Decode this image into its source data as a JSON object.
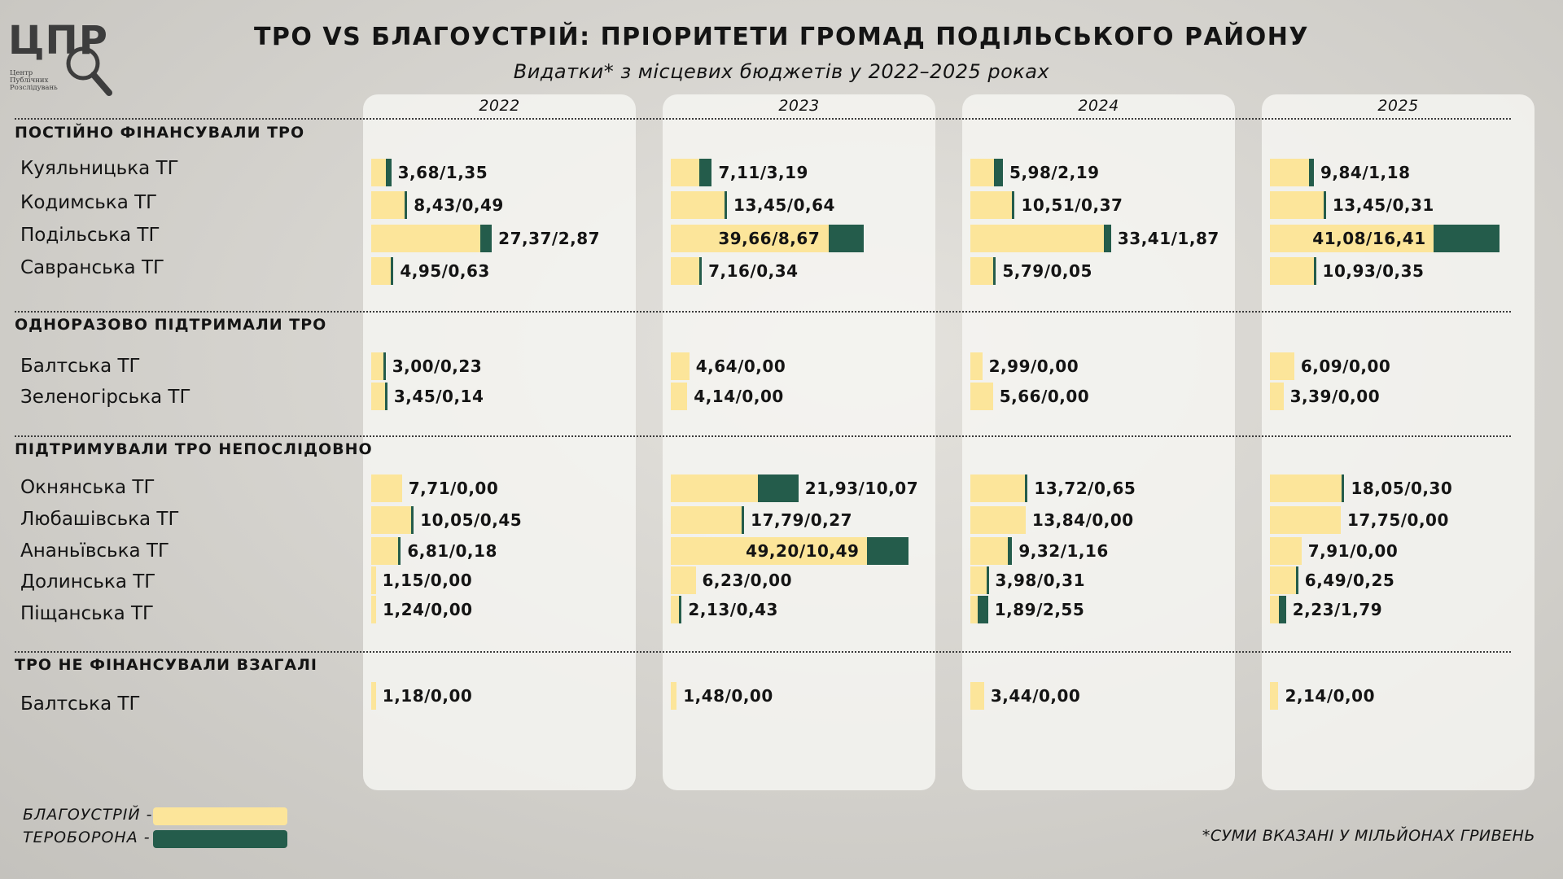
{
  "logo": {
    "text": "ЦПР",
    "sub": [
      "Центр",
      "Публічних",
      "Розслідувань"
    ]
  },
  "title": "ТРО VS БЛАГОУСТРІЙ: ПРІОРИТЕТИ ГРОМАД ПОДІЛЬСЬКОГО РАЙОНУ",
  "subtitle": "Видатки* з місцевих бюджетів у 2022–2025 роках",
  "legend": {
    "blag_label": "БЛАГОУСТРІЙ -",
    "tro_label": "ТЕРОБОРОНА -",
    "blag_color": "#fce59a",
    "tro_color": "#245c4b"
  },
  "footnote": "*СУМИ ВКАЗАНІ У МІЛЬЙОНАХ ГРИВЕНЬ",
  "chart_data": {
    "type": "bar",
    "years": [
      "2022",
      "2023",
      "2024",
      "2025"
    ],
    "series_names": [
      "БЛАГОУСТРІЙ",
      "ТЕРОБОРОНА"
    ],
    "groups": [
      {
        "label": "ПОСТІЙНО ФІНАНСУВАЛИ ТРО",
        "rows": [
          {
            "name": "Куяльницька ТГ",
            "values": [
              [
                3.68,
                1.35
              ],
              [
                7.11,
                3.19
              ],
              [
                5.98,
                2.19
              ],
              [
                9.84,
                1.18
              ]
            ],
            "labels": [
              "3,68/1,35",
              "7,11/3,19",
              "5,98/2,19",
              "9,84/1,18"
            ]
          },
          {
            "name": "Кодимська ТГ",
            "values": [
              [
                8.43,
                0.49
              ],
              [
                13.45,
                0.64
              ],
              [
                10.51,
                0.37
              ],
              [
                13.45,
                0.31
              ]
            ],
            "labels": [
              "8,43/0,49",
              "13,45/0,64",
              "10,51/0,37",
              "13,45/0,31"
            ]
          },
          {
            "name": "Подільська ТГ",
            "values": [
              [
                27.37,
                2.87
              ],
              [
                39.66,
                8.67
              ],
              [
                33.41,
                1.87
              ],
              [
                41.08,
                16.41
              ]
            ],
            "labels": [
              "27,37/2,87",
              "39,66/8,67",
              "33,41/1,87",
              "41,08/16,41"
            ]
          },
          {
            "name": "Савранська ТГ",
            "values": [
              [
                4.95,
                0.63
              ],
              [
                7.16,
                0.34
              ],
              [
                5.79,
                0.05
              ],
              [
                10.93,
                0.35
              ]
            ],
            "labels": [
              "4,95/0,63",
              "7,16/0,34",
              "5,79/0,05",
              "10,93/0,35"
            ]
          }
        ]
      },
      {
        "label": "ОДНОРАЗОВО ПІДТРИМАЛИ ТРО",
        "rows": [
          {
            "name": "Балтська ТГ",
            "values": [
              [
                3.0,
                0.23
              ],
              [
                4.64,
                0.0
              ],
              [
                2.99,
                0.0
              ],
              [
                6.09,
                0.0
              ]
            ],
            "labels": [
              "3,00/0,23",
              "4,64/0,00",
              "2,99/0,00",
              "6,09/0,00"
            ]
          },
          {
            "name": "Зеленогірська ТГ",
            "values": [
              [
                3.45,
                0.14
              ],
              [
                4.14,
                0.0
              ],
              [
                5.66,
                0.0
              ],
              [
                3.39,
                0.0
              ]
            ],
            "labels": [
              "3,45/0,14",
              "4,14/0,00",
              "5,66/0,00",
              "3,39/0,00"
            ]
          }
        ]
      },
      {
        "label": "ПІДТРИМУВАЛИ ТРО НЕПОСЛІДОВНО",
        "rows": [
          {
            "name": "Окнянська ТГ",
            "values": [
              [
                7.71,
                0.0
              ],
              [
                21.93,
                10.07
              ],
              [
                13.72,
                0.65
              ],
              [
                18.05,
                0.3
              ]
            ],
            "labels": [
              "7,71/0,00",
              "21,93/10,07",
              "13,72/0,65",
              "18,05/0,30"
            ]
          },
          {
            "name": "Любашівська ТГ",
            "values": [
              [
                10.05,
                0.45
              ],
              [
                17.79,
                0.27
              ],
              [
                13.84,
                0.0
              ],
              [
                17.75,
                0.0
              ]
            ],
            "labels": [
              "10,05/0,45",
              "17,79/0,27",
              "13,84/0,00",
              "17,75/0,00"
            ]
          },
          {
            "name": "Ананьївська ТГ",
            "values": [
              [
                6.81,
                0.18
              ],
              [
                49.2,
                10.49
              ],
              [
                9.32,
                1.16
              ],
              [
                7.91,
                0.0
              ]
            ],
            "labels": [
              "6,81/0,18",
              "49,20/10,49",
              "9,32/1,16",
              "7,91/0,00"
            ]
          },
          {
            "name": "Долинська ТГ",
            "values": [
              [
                1.15,
                0.0
              ],
              [
                6.23,
                0.0
              ],
              [
                3.98,
                0.31
              ],
              [
                6.49,
                0.25
              ]
            ],
            "labels": [
              "1,15/0,00",
              "6,23/0,00",
              "3,98/0,31",
              "6,49/0,25"
            ]
          },
          {
            "name": "Піщанська ТГ",
            "values": [
              [
                1.24,
                0.0
              ],
              [
                2.13,
                0.43
              ],
              [
                1.89,
                2.55
              ],
              [
                2.23,
                1.79
              ]
            ],
            "labels": [
              "1,24/0,00",
              "2,13/0,43",
              "1,89/2,55",
              "2,23/1,79"
            ]
          }
        ]
      },
      {
        "label": "ТРО НЕ ФІНАНСУВАЛИ ВЗАГАЛІ",
        "rows": [
          {
            "name": "Балтська ТГ",
            "values": [
              [
                1.18,
                0.0
              ],
              [
                1.48,
                0.0
              ],
              [
                3.44,
                0.0
              ],
              [
                2.14,
                0.0
              ]
            ],
            "labels": [
              "1,18/0,00",
              "1,48/0,00",
              "3,44/0,00",
              "2,14/0,00"
            ]
          }
        ]
      }
    ]
  }
}
